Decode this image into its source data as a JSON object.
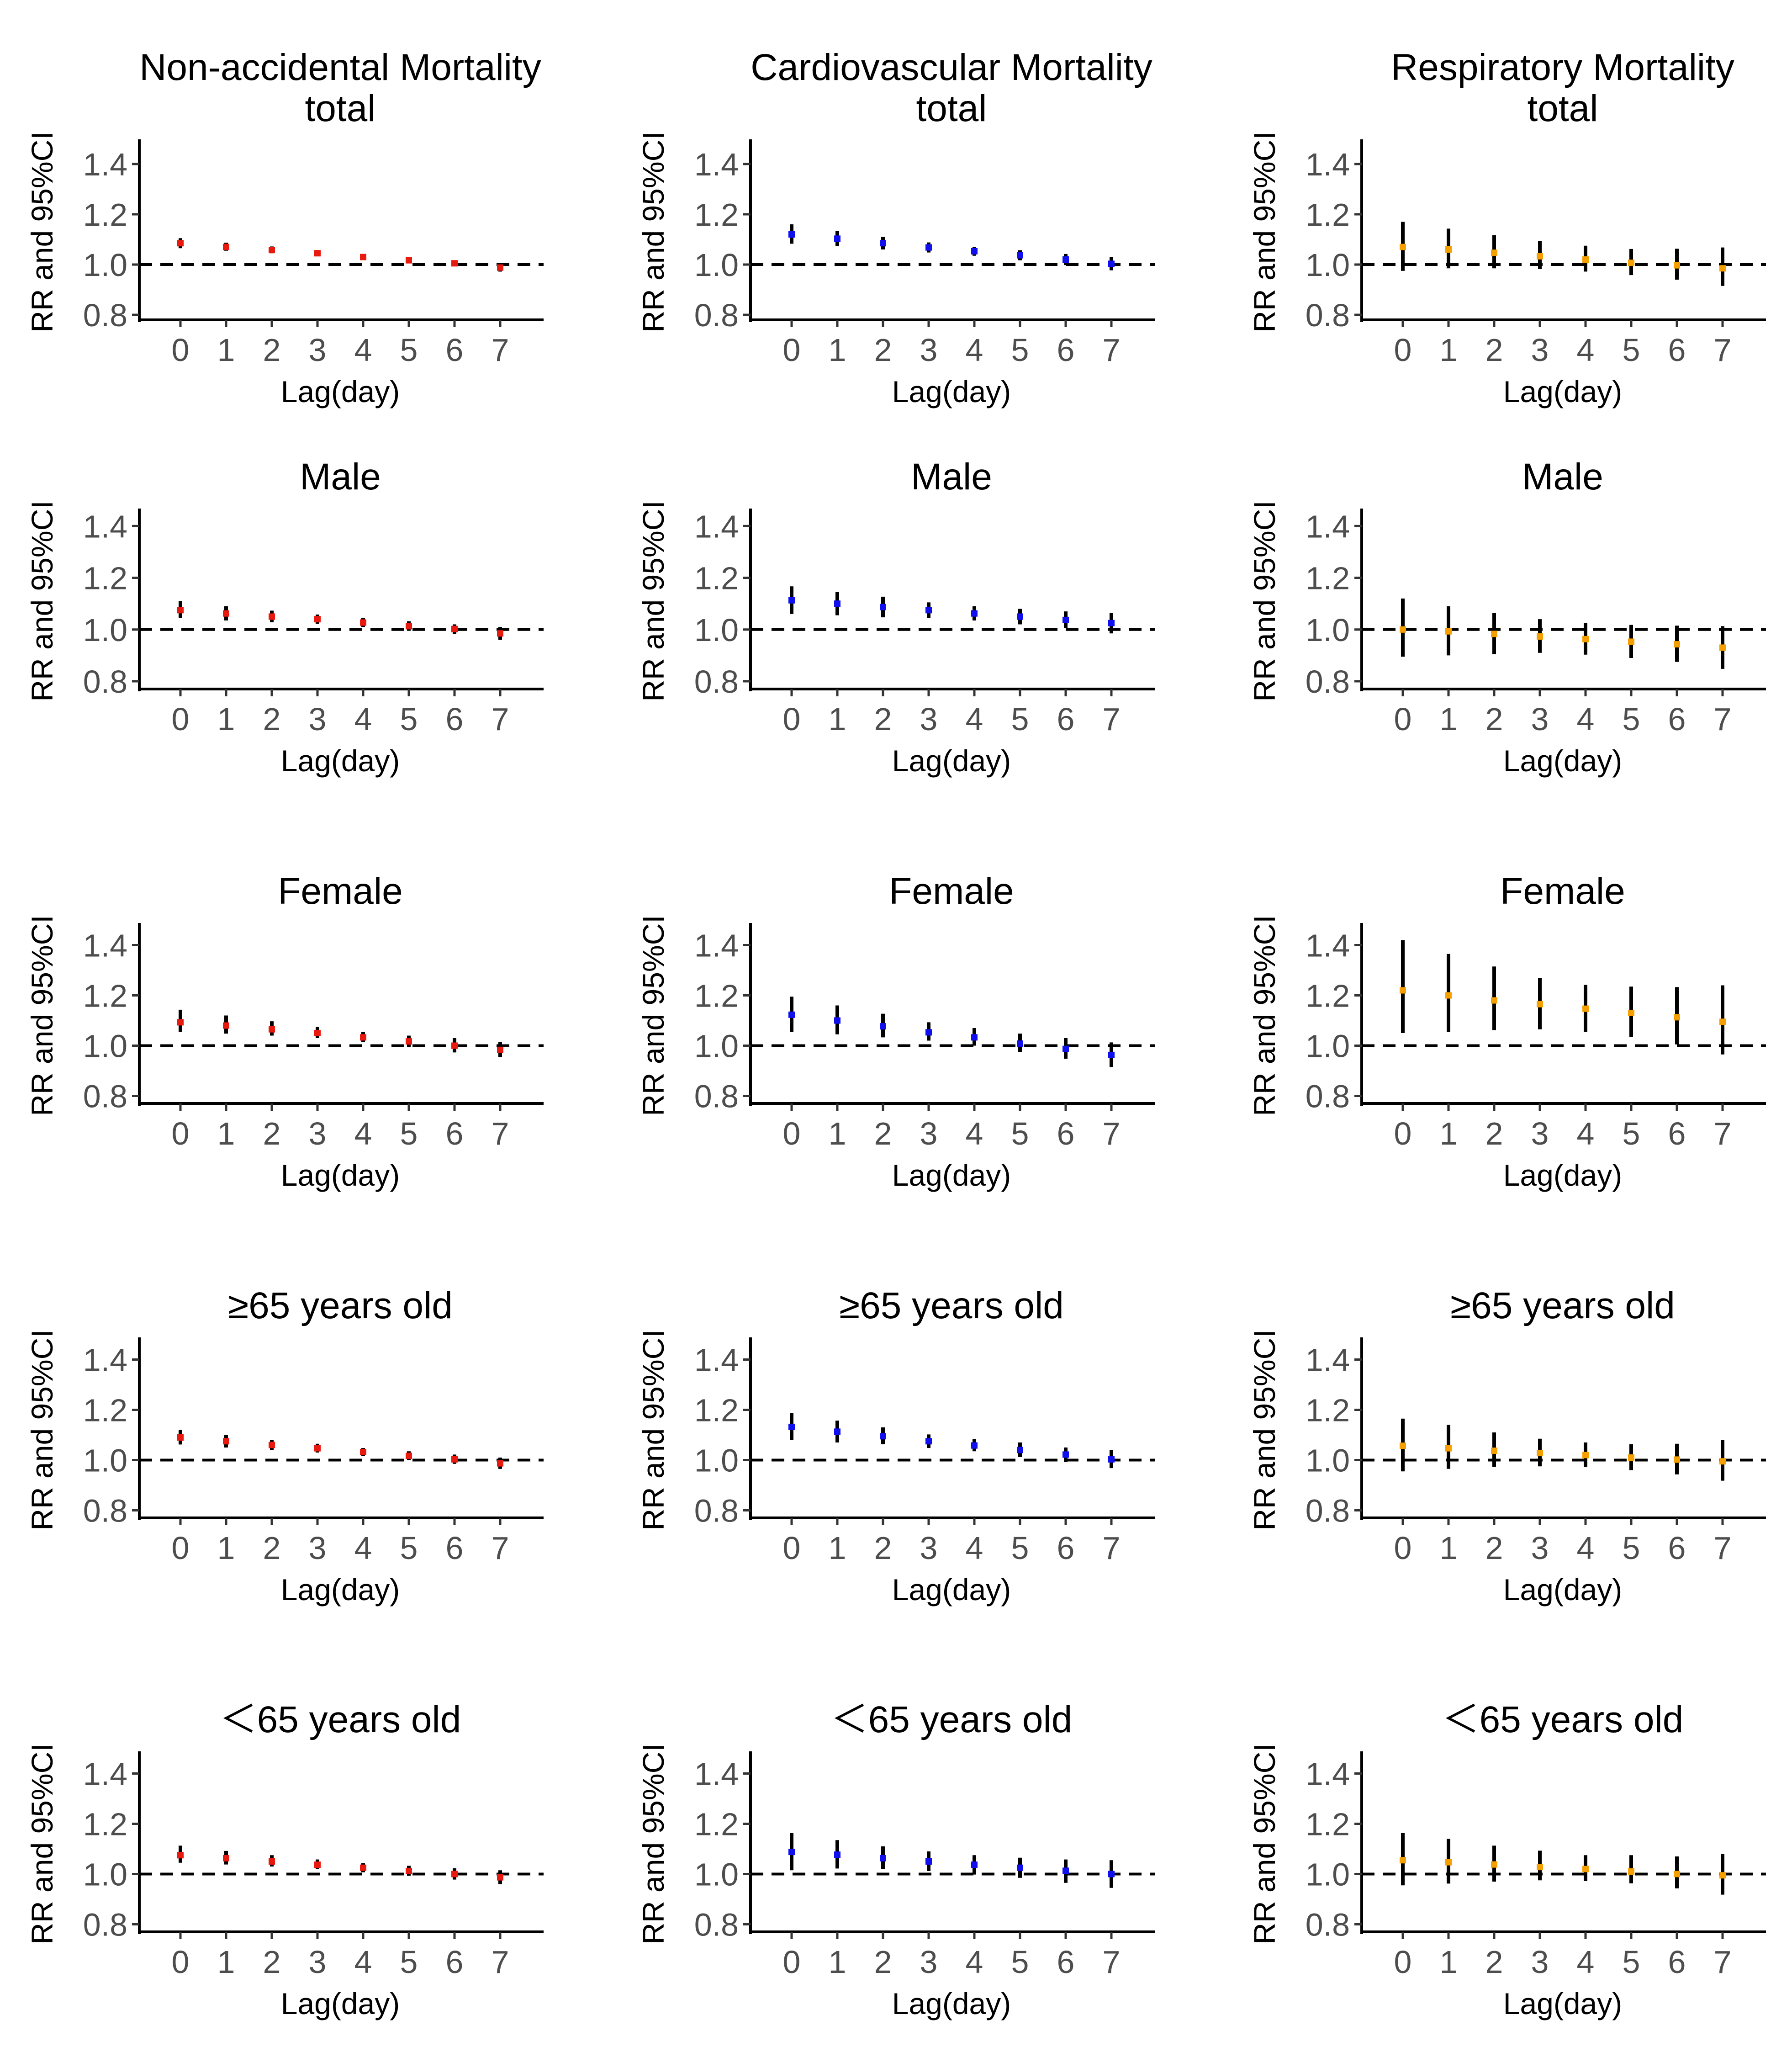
{
  "colors": {
    "non_accidental": "#e8190f",
    "cardiovascular": "#1010ee",
    "respiratory": "#f5a000",
    "errorbar": "#000000",
    "axis": "#000000",
    "tick_label": "#4d4d4d",
    "reference_line": "#000000"
  },
  "chart_data": [
    {
      "type": "errorbar",
      "row": 0,
      "col": 0,
      "title": "Non-accidental Mortality\ntotal",
      "xlabel": "Lag(day)",
      "ylabel": "RR and 95%CI",
      "series_color": "non_accidental",
      "x": [
        0,
        1,
        2,
        3,
        4,
        5,
        6,
        7
      ],
      "xticks": [
        "0",
        "1",
        "2",
        "3",
        "4",
        "5",
        "6",
        "7"
      ],
      "yticks": [
        "0.8",
        "1.0",
        "1.2",
        "1.4"
      ],
      "ylim": [
        0.78,
        1.48
      ],
      "reference_y": 1.0,
      "rr": [
        1.085,
        1.07,
        1.058,
        1.045,
        1.03,
        1.017,
        1.005,
        0.988
      ],
      "lower": [
        1.065,
        1.055,
        1.045,
        1.033,
        1.02,
        1.005,
        0.993,
        0.972
      ],
      "upper": [
        1.105,
        1.087,
        1.072,
        1.058,
        1.042,
        1.028,
        1.015,
        1.002
      ]
    },
    {
      "type": "errorbar",
      "row": 0,
      "col": 1,
      "title": "Cardiovascular Mortality\ntotal",
      "xlabel": "Lag(day)",
      "ylabel": "RR and 95%CI",
      "series_color": "cardiovascular",
      "x": [
        0,
        1,
        2,
        3,
        4,
        5,
        6,
        7
      ],
      "xticks": [
        "0",
        "1",
        "2",
        "3",
        "4",
        "5",
        "6",
        "7"
      ],
      "yticks": [
        "0.8",
        "1.0",
        "1.2",
        "1.4"
      ],
      "ylim": [
        0.78,
        1.48
      ],
      "reference_y": 1.0,
      "rr": [
        1.12,
        1.103,
        1.085,
        1.068,
        1.053,
        1.037,
        1.02,
        1.003
      ],
      "lower": [
        1.083,
        1.073,
        1.06,
        1.048,
        1.035,
        1.017,
        0.998,
        0.977
      ],
      "upper": [
        1.16,
        1.133,
        1.11,
        1.088,
        1.07,
        1.057,
        1.042,
        1.03
      ]
    },
    {
      "type": "errorbar",
      "row": 0,
      "col": 2,
      "title": "Respiratory Mortality\ntotal",
      "xlabel": "Lag(day)",
      "ylabel": "RR and 95%CI",
      "series_color": "respiratory",
      "x": [
        0,
        1,
        2,
        3,
        4,
        5,
        6,
        7
      ],
      "xticks": [
        "0",
        "1",
        "2",
        "3",
        "4",
        "5",
        "6",
        "7"
      ],
      "yticks": [
        "0.8",
        "1.0",
        "1.2",
        "1.4"
      ],
      "ylim": [
        0.78,
        1.48
      ],
      "reference_y": 1.0,
      "rr": [
        1.07,
        1.06,
        1.047,
        1.033,
        1.02,
        1.007,
        0.997,
        0.985
      ],
      "lower": [
        0.975,
        0.985,
        0.985,
        0.982,
        0.972,
        0.958,
        0.94,
        0.915
      ],
      "upper": [
        1.17,
        1.143,
        1.117,
        1.093,
        1.075,
        1.062,
        1.063,
        1.068
      ]
    },
    {
      "type": "errorbar",
      "row": 1,
      "col": 0,
      "title": "Male",
      "xlabel": "Lag(day)",
      "ylabel": "RR and 95%CI",
      "series_color": "non_accidental",
      "x": [
        0,
        1,
        2,
        3,
        4,
        5,
        6,
        7
      ],
      "xticks": [
        "0",
        "1",
        "2",
        "3",
        "4",
        "5",
        "6",
        "7"
      ],
      "yticks": [
        "0.8",
        "1.0",
        "1.2",
        "1.4"
      ],
      "ylim": [
        0.77,
        1.45
      ],
      "reference_y": 1.0,
      "rr": [
        1.075,
        1.062,
        1.05,
        1.04,
        1.027,
        1.013,
        1.002,
        0.985
      ],
      "lower": [
        1.045,
        1.035,
        1.028,
        1.022,
        1.01,
        0.995,
        0.982,
        0.96
      ],
      "upper": [
        1.11,
        1.09,
        1.073,
        1.058,
        1.045,
        1.032,
        1.02,
        1.01
      ]
    },
    {
      "type": "errorbar",
      "row": 1,
      "col": 1,
      "title": "Male",
      "xlabel": "Lag(day)",
      "ylabel": "RR and 95%CI",
      "series_color": "cardiovascular",
      "x": [
        0,
        1,
        2,
        3,
        4,
        5,
        6,
        7
      ],
      "xticks": [
        "0",
        "1",
        "2",
        "3",
        "4",
        "5",
        "6",
        "7"
      ],
      "yticks": [
        "0.8",
        "1.0",
        "1.2",
        "1.4"
      ],
      "ylim": [
        0.77,
        1.45
      ],
      "reference_y": 1.0,
      "rr": [
        1.113,
        1.1,
        1.087,
        1.075,
        1.062,
        1.05,
        1.037,
        1.025
      ],
      "lower": [
        1.06,
        1.055,
        1.047,
        1.045,
        1.035,
        1.02,
        1.005,
        0.985
      ],
      "upper": [
        1.167,
        1.145,
        1.127,
        1.105,
        1.09,
        1.08,
        1.07,
        1.065
      ]
    },
    {
      "type": "errorbar",
      "row": 1,
      "col": 2,
      "title": "Male",
      "xlabel": "Lag(day)",
      "ylabel": "RR and 95%CI",
      "series_color": "respiratory",
      "x": [
        0,
        1,
        2,
        3,
        4,
        5,
        6,
        7
      ],
      "xticks": [
        "0",
        "1",
        "2",
        "3",
        "4",
        "5",
        "6",
        "7"
      ],
      "yticks": [
        "0.8",
        "1.0",
        "1.2",
        "1.4"
      ],
      "ylim": [
        0.77,
        1.45
      ],
      "reference_y": 1.0,
      "rr": [
        1.0,
        0.993,
        0.983,
        0.973,
        0.963,
        0.953,
        0.943,
        0.93
      ],
      "lower": [
        0.895,
        0.9,
        0.905,
        0.91,
        0.903,
        0.89,
        0.875,
        0.848
      ],
      "upper": [
        1.12,
        1.09,
        1.065,
        1.04,
        1.025,
        1.018,
        1.015,
        1.013
      ]
    },
    {
      "type": "errorbar",
      "row": 2,
      "col": 0,
      "title": "Female",
      "xlabel": "Lag(day)",
      "ylabel": "RR and 95%CI",
      "series_color": "non_accidental",
      "x": [
        0,
        1,
        2,
        3,
        4,
        5,
        6,
        7
      ],
      "xticks": [
        "0",
        "1",
        "2",
        "3",
        "4",
        "5",
        "6",
        "7"
      ],
      "yticks": [
        "0.8",
        "1.0",
        "1.2",
        "1.4"
      ],
      "ylim": [
        0.77,
        1.47
      ],
      "reference_y": 1.0,
      "rr": [
        1.093,
        1.08,
        1.065,
        1.05,
        1.033,
        1.017,
        1.0,
        0.983
      ],
      "lower": [
        1.055,
        1.048,
        1.04,
        1.03,
        1.015,
        0.995,
        0.973,
        0.955
      ],
      "upper": [
        1.143,
        1.12,
        1.097,
        1.075,
        1.055,
        1.04,
        1.03,
        1.015
      ]
    },
    {
      "type": "errorbar",
      "row": 2,
      "col": 1,
      "title": "Female",
      "xlabel": "Lag(day)",
      "ylabel": "RR and 95%CI",
      "series_color": "cardiovascular",
      "x": [
        0,
        1,
        2,
        3,
        4,
        5,
        6,
        7
      ],
      "xticks": [
        "0",
        "1",
        "2",
        "3",
        "4",
        "5",
        "6",
        "7"
      ],
      "yticks": [
        "0.8",
        "1.0",
        "1.2",
        "1.4"
      ],
      "ylim": [
        0.77,
        1.47
      ],
      "reference_y": 1.0,
      "rr": [
        1.123,
        1.1,
        1.077,
        1.053,
        1.033,
        1.008,
        0.987,
        0.963
      ],
      "lower": [
        1.055,
        1.045,
        1.033,
        1.02,
        1.0,
        0.975,
        0.948,
        0.915
      ],
      "upper": [
        1.195,
        1.16,
        1.127,
        1.093,
        1.07,
        1.048,
        1.03,
        1.013
      ]
    },
    {
      "type": "errorbar",
      "row": 2,
      "col": 2,
      "title": "Female",
      "xlabel": "Lag(day)",
      "ylabel": "RR and 95%CI",
      "series_color": "respiratory",
      "x": [
        0,
        1,
        2,
        3,
        4,
        5,
        6,
        7
      ],
      "xticks": [
        "0",
        "1",
        "2",
        "3",
        "4",
        "5",
        "6",
        "7"
      ],
      "yticks": [
        "0.8",
        "1.0",
        "1.2",
        "1.4"
      ],
      "ylim": [
        0.77,
        1.47
      ],
      "reference_y": 1.0,
      "rr": [
        1.22,
        1.2,
        1.18,
        1.165,
        1.147,
        1.13,
        1.113,
        1.095
      ],
      "lower": [
        1.05,
        1.055,
        1.062,
        1.065,
        1.055,
        1.035,
        1.005,
        0.965
      ],
      "upper": [
        1.42,
        1.365,
        1.315,
        1.27,
        1.242,
        1.235,
        1.233,
        1.24
      ]
    },
    {
      "type": "errorbar",
      "row": 3,
      "col": 0,
      "title": "≥65 years old",
      "xlabel": "Lag(day)",
      "ylabel": "RR and 95%CI",
      "series_color": "non_accidental",
      "x": [
        0,
        1,
        2,
        3,
        4,
        5,
        6,
        7
      ],
      "xticks": [
        "0",
        "1",
        "2",
        "3",
        "4",
        "5",
        "6",
        "7"
      ],
      "yticks": [
        "0.8",
        "1.0",
        "1.2",
        "1.4"
      ],
      "ylim": [
        0.77,
        1.47
      ],
      "reference_y": 1.0,
      "rr": [
        1.09,
        1.075,
        1.06,
        1.047,
        1.032,
        1.017,
        1.003,
        0.987
      ],
      "lower": [
        1.062,
        1.05,
        1.04,
        1.03,
        1.017,
        1.0,
        0.985,
        0.965
      ],
      "upper": [
        1.12,
        1.1,
        1.08,
        1.065,
        1.048,
        1.035,
        1.022,
        1.01
      ]
    },
    {
      "type": "errorbar",
      "row": 3,
      "col": 1,
      "title": "≥65 years old",
      "xlabel": "Lag(day)",
      "ylabel": "RR and 95%CI",
      "series_color": "cardiovascular",
      "x": [
        0,
        1,
        2,
        3,
        4,
        5,
        6,
        7
      ],
      "xticks": [
        "0",
        "1",
        "2",
        "3",
        "4",
        "5",
        "6",
        "7"
      ],
      "yticks": [
        "0.8",
        "1.0",
        "1.2",
        "1.4"
      ],
      "ylim": [
        0.77,
        1.47
      ],
      "reference_y": 1.0,
      "rr": [
        1.132,
        1.113,
        1.095,
        1.075,
        1.058,
        1.04,
        1.022,
        1.003
      ],
      "lower": [
        1.08,
        1.07,
        1.063,
        1.048,
        1.035,
        1.012,
        0.992,
        0.968
      ],
      "upper": [
        1.187,
        1.157,
        1.13,
        1.102,
        1.083,
        1.07,
        1.05,
        1.04
      ]
    },
    {
      "type": "errorbar",
      "row": 3,
      "col": 2,
      "title": "≥65 years old",
      "xlabel": "Lag(day)",
      "ylabel": "RR and 95%CI",
      "series_color": "respiratory",
      "x": [
        0,
        1,
        2,
        3,
        4,
        5,
        6,
        7
      ],
      "xticks": [
        "0",
        "1",
        "2",
        "3",
        "4",
        "5",
        "6",
        "7"
      ],
      "yticks": [
        "0.8",
        "1.0",
        "1.2",
        "1.4"
      ],
      "ylim": [
        0.77,
        1.47
      ],
      "reference_y": 1.0,
      "rr": [
        1.057,
        1.047,
        1.037,
        1.028,
        1.02,
        1.01,
        1.002,
        0.995
      ],
      "lower": [
        0.955,
        0.965,
        0.973,
        0.975,
        0.972,
        0.96,
        0.943,
        0.918
      ],
      "upper": [
        1.165,
        1.14,
        1.11,
        1.085,
        1.07,
        1.063,
        1.065,
        1.08
      ]
    },
    {
      "type": "errorbar",
      "row": 4,
      "col": 0,
      "title": "＜65 years old",
      "xlabel": "Lag(day)",
      "ylabel": "RR and 95%CI",
      "series_color": "non_accidental",
      "x": [
        0,
        1,
        2,
        3,
        4,
        5,
        6,
        7
      ],
      "xticks": [
        "0",
        "1",
        "2",
        "3",
        "4",
        "5",
        "6",
        "7"
      ],
      "yticks": [
        "0.8",
        "1.0",
        "1.2",
        "1.4"
      ],
      "ylim": [
        0.77,
        1.47
      ],
      "reference_y": 1.0,
      "rr": [
        1.075,
        1.063,
        1.05,
        1.037,
        1.025,
        1.012,
        1.0,
        0.987
      ],
      "lower": [
        1.045,
        1.038,
        1.03,
        1.02,
        1.007,
        0.993,
        0.978,
        0.96
      ],
      "upper": [
        1.113,
        1.092,
        1.075,
        1.058,
        1.043,
        1.033,
        1.023,
        1.015
      ]
    },
    {
      "type": "errorbar",
      "row": 4,
      "col": 1,
      "title": "＜65 years old",
      "xlabel": "Lag(day)",
      "ylabel": "RR and 95%CI",
      "series_color": "cardiovascular",
      "x": [
        0,
        1,
        2,
        3,
        4,
        5,
        6,
        7
      ],
      "xticks": [
        "0",
        "1",
        "2",
        "3",
        "4",
        "5",
        "6",
        "7"
      ],
      "yticks": [
        "0.8",
        "1.0",
        "1.2",
        "1.4"
      ],
      "ylim": [
        0.77,
        1.47
      ],
      "reference_y": 1.0,
      "rr": [
        1.088,
        1.077,
        1.063,
        1.05,
        1.037,
        1.025,
        1.013,
        1.0
      ],
      "lower": [
        1.015,
        1.022,
        1.02,
        1.012,
        0.998,
        0.985,
        0.965,
        0.945
      ],
      "upper": [
        1.163,
        1.135,
        1.11,
        1.09,
        1.075,
        1.065,
        1.058,
        1.055
      ]
    },
    {
      "type": "errorbar",
      "row": 4,
      "col": 2,
      "title": "＜65 years old",
      "xlabel": "Lag(day)",
      "ylabel": "RR and 95%CI",
      "series_color": "respiratory",
      "x": [
        0,
        1,
        2,
        3,
        4,
        5,
        6,
        7
      ],
      "xticks": [
        "0",
        "1",
        "2",
        "3",
        "4",
        "5",
        "6",
        "7"
      ],
      "yticks": [
        "0.8",
        "1.0",
        "1.2",
        "1.4"
      ],
      "ylim": [
        0.77,
        1.47
      ],
      "reference_y": 1.0,
      "rr": [
        1.055,
        1.047,
        1.038,
        1.028,
        1.02,
        1.01,
        1.0,
        0.995
      ],
      "lower": [
        0.955,
        0.962,
        0.97,
        0.975,
        0.972,
        0.963,
        0.943,
        0.918
      ],
      "upper": [
        1.163,
        1.14,
        1.113,
        1.093,
        1.075,
        1.075,
        1.07,
        1.08
      ]
    }
  ]
}
